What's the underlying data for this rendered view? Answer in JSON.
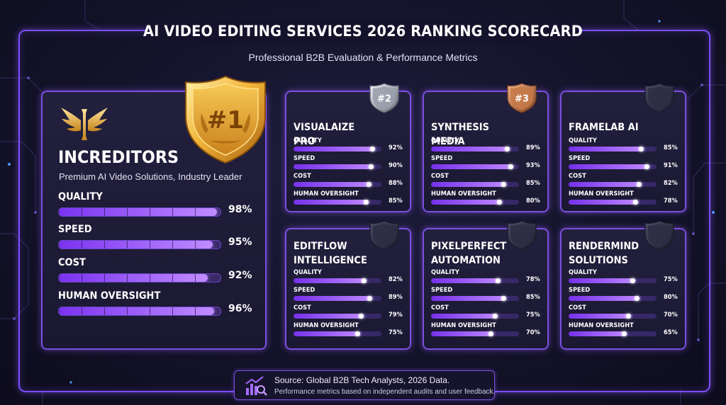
{
  "header": {
    "title": "AI VIDEO EDITING SERVICES 2026 RANKING SCORECARD",
    "subtitle": "Professional B2B Evaluation & Performance Metrics"
  },
  "colors": {
    "accent": "#7b4fe0",
    "bar": "#a56bff",
    "gold": "#f2b53a",
    "silver": "#c9ccd6",
    "bronze": "#c77a4a"
  },
  "leader": {
    "rank": "#1",
    "name": "INCREDITORS",
    "description": "Premium AI Video Solutions, Industry Leader",
    "logo_icon": "winged-i-logo",
    "metrics": [
      {
        "label": "QUALITY",
        "value": 98,
        "display": "98%"
      },
      {
        "label": "SPEED",
        "value": 95,
        "display": "95%"
      },
      {
        "label": "COST",
        "value": 92,
        "display": "92%"
      },
      {
        "label": "HUMAN OVERSIGHT",
        "value": 96,
        "display": "96%"
      }
    ]
  },
  "services": [
    {
      "rank": "#2",
      "badge": "silver-shield-icon",
      "name": "VISUALAIZE PRO",
      "metrics": [
        {
          "label": "QUALITY",
          "value": 92,
          "display": "92%"
        },
        {
          "label": "SPEED",
          "value": 90,
          "display": "90%"
        },
        {
          "label": "COST",
          "value": 88,
          "display": "88%"
        },
        {
          "label": "HUMAN OVERSIGHT",
          "value": 85,
          "display": "85%"
        }
      ]
    },
    {
      "rank": "#3",
      "badge": "bronze-shield-icon",
      "name": "SYNTHESIS MEDIA",
      "metrics": [
        {
          "label": "QUALITY",
          "value": 89,
          "display": "89%"
        },
        {
          "label": "SPEED",
          "value": 93,
          "display": "93%"
        },
        {
          "label": "COST",
          "value": 85,
          "display": "85%"
        },
        {
          "label": "HUMAN OVERSIGHT",
          "value": 80,
          "display": "80%"
        }
      ]
    },
    {
      "rank": "",
      "badge": "dark-shield-icon",
      "name": "FRAMELAB AI",
      "metrics": [
        {
          "label": "QUALITY",
          "value": 85,
          "display": "85%"
        },
        {
          "label": "SPEED",
          "value": 91,
          "display": "91%"
        },
        {
          "label": "COST",
          "value": 82,
          "display": "82%"
        },
        {
          "label": "HUMAN OVERSIGHT",
          "value": 78,
          "display": "78%"
        }
      ]
    },
    {
      "rank": "",
      "badge": "dark-shield-icon",
      "name": "EDITFLOW INTELLIGENCE",
      "metrics": [
        {
          "label": "QUALITY",
          "value": 82,
          "display": "82%"
        },
        {
          "label": "SPEED",
          "value": 89,
          "display": "89%"
        },
        {
          "label": "COST",
          "value": 79,
          "display": "79%"
        },
        {
          "label": "HUMAN OVERSIGHT",
          "value": 75,
          "display": "75%"
        }
      ]
    },
    {
      "rank": "",
      "badge": "dark-shield-icon",
      "name": "PIXELPERFECT AUTOMATION",
      "metrics": [
        {
          "label": "QUALITY",
          "value": 78,
          "display": "78%"
        },
        {
          "label": "SPEED",
          "value": 85,
          "display": "85%"
        },
        {
          "label": "COST",
          "value": 75,
          "display": "75%"
        },
        {
          "label": "HUMAN OVERSIGHT",
          "value": 70,
          "display": "70%"
        }
      ]
    },
    {
      "rank": "",
      "badge": "dark-shield-icon",
      "name": "RENDERMIND SOLUTIONS",
      "metrics": [
        {
          "label": "QUALITY",
          "value": 75,
          "display": "75%"
        },
        {
          "label": "SPEED",
          "value": 80,
          "display": "80%"
        },
        {
          "label": "COST",
          "value": 70,
          "display": "70%"
        },
        {
          "label": "HUMAN OVERSIGHT",
          "value": 65,
          "display": "65%"
        }
      ]
    }
  ],
  "footer": {
    "source": "Source: Global B2B Tech Analysts, 2026 Data.",
    "note": "Performance metrics based on independent audits and user feedback.",
    "icon": "chart-magnifier-icon"
  }
}
